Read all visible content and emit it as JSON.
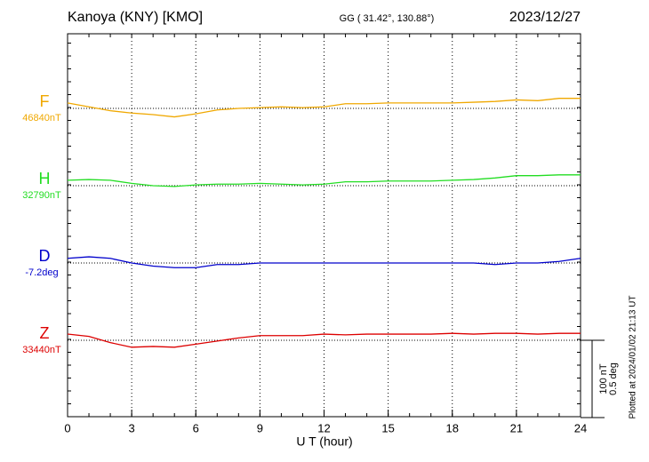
{
  "chart_data": {
    "type": "line",
    "title": "Kanoya (KNY)  [KMO]",
    "subtitle": "GG ( 31.42°, 130.88°)",
    "date": "2023/12/27",
    "x_label": "U T (hour)",
    "footnote": "Plotted at 2024/01/02 21:13 UT",
    "x": [
      0,
      1,
      2,
      3,
      4,
      5,
      6,
      7,
      8,
      9,
      10,
      11,
      12,
      13,
      14,
      15,
      16,
      17,
      18,
      19,
      20,
      21,
      22,
      23,
      24
    ],
    "xlim": [
      0,
      24
    ],
    "xticks": [
      0,
      3,
      6,
      9,
      12,
      15,
      18,
      21,
      24
    ],
    "grid": true,
    "scale_bar": [
      {
        "value": 100,
        "label": "100 nT"
      },
      {
        "value": 0.5,
        "label": "0.5 deg"
      }
    ],
    "series": [
      {
        "name": "F",
        "color": "#f0a800",
        "scale": 0,
        "baseline": {
          "value": 46840,
          "label": "46840nT"
        },
        "values": [
          46847,
          46842,
          46837,
          46834,
          46832,
          46829,
          46833,
          46838,
          46840,
          46841,
          46842,
          46841,
          46842,
          46846,
          46846,
          46847,
          46847,
          46847,
          46847,
          46848,
          46849,
          46851,
          46850,
          46853,
          46853
        ]
      },
      {
        "name": "H",
        "color": "#22dd22",
        "scale": 0,
        "baseline": {
          "value": 32790,
          "label": "32790nT"
        },
        "values": [
          32797,
          32798,
          32797,
          32793,
          32790,
          32789,
          32791,
          32792,
          32792,
          32793,
          32792,
          32791,
          32792,
          32795,
          32795,
          32796,
          32796,
          32796,
          32797,
          32798,
          32800,
          32803,
          32803,
          32804,
          32804
        ]
      },
      {
        "name": "D",
        "color": "#0000cc",
        "scale": 1,
        "baseline": {
          "value": -7.2,
          "label": "-7.2deg"
        },
        "values": [
          -7.17,
          -7.16,
          -7.17,
          -7.2,
          -7.22,
          -7.23,
          -7.23,
          -7.21,
          -7.21,
          -7.2,
          -7.2,
          -7.2,
          -7.2,
          -7.2,
          -7.2,
          -7.2,
          -7.2,
          -7.2,
          -7.2,
          -7.2,
          -7.21,
          -7.2,
          -7.2,
          -7.19,
          -7.17
        ]
      },
      {
        "name": "Z",
        "color": "#dd0000",
        "scale": 0,
        "baseline": {
          "value": 33440,
          "label": "33440nT"
        },
        "values": [
          33448,
          33445,
          33437,
          33431,
          33432,
          33431,
          33435,
          33439,
          33443,
          33446,
          33446,
          33446,
          33448,
          33447,
          33448,
          33448,
          33448,
          33448,
          33449,
          33448,
          33449,
          33449,
          33448,
          33449,
          33449
        ]
      }
    ]
  }
}
